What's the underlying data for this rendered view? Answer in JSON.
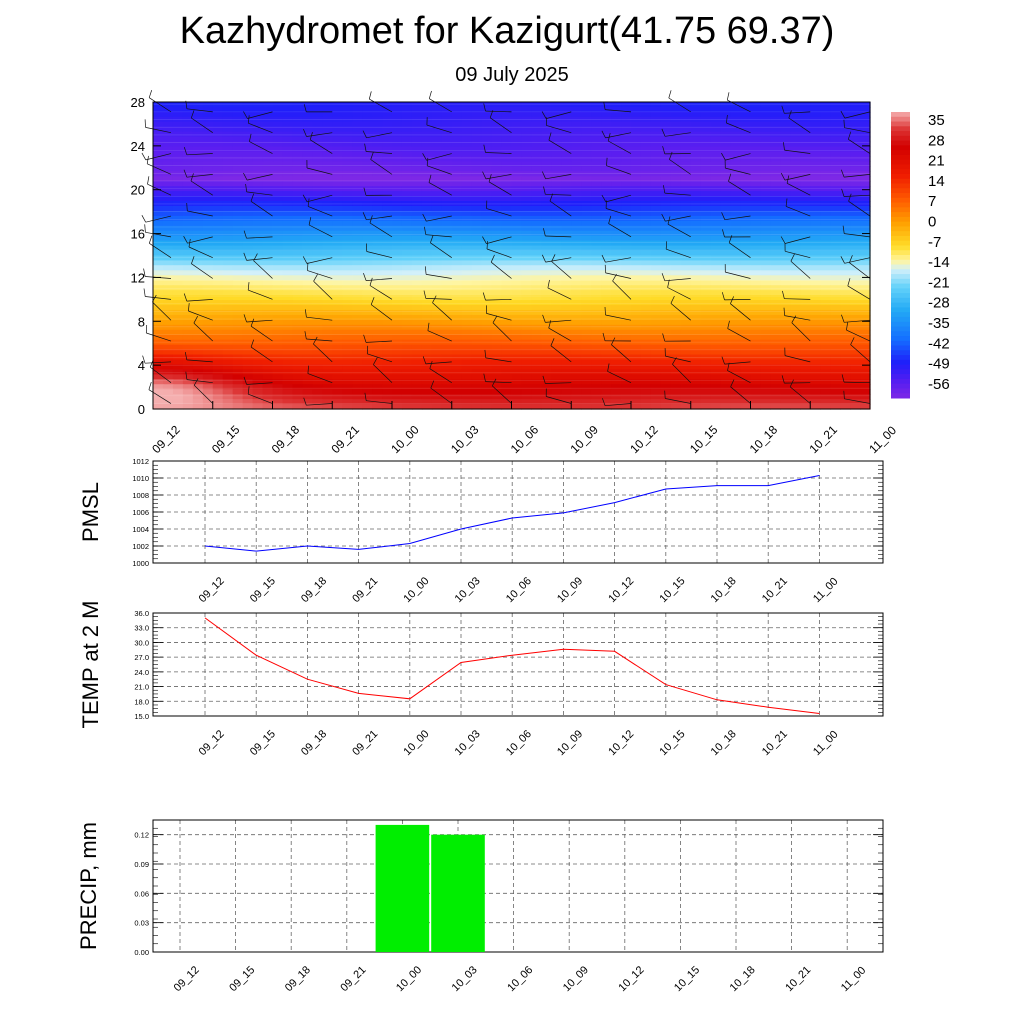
{
  "header": {
    "title": "Kazhydromet for Kazigurt(41.75 69.37)",
    "date": "09 July 2025"
  },
  "chart_data": [
    {
      "type": "heatmap",
      "time_labels": [
        "09_12",
        "09_15",
        "09_18",
        "09_21",
        "10_00",
        "10_03",
        "10_06",
        "10_09",
        "10_12",
        "10_15",
        "10_18",
        "10_21",
        "11_00"
      ],
      "yticks": [
        0,
        4,
        8,
        12,
        16,
        20,
        24,
        28
      ],
      "ylim": [
        0,
        28
      ],
      "colorbar_labels": [
        35,
        28,
        21,
        14,
        7,
        0,
        -7,
        -14,
        -21,
        -28,
        -35,
        -42,
        -49,
        -56
      ],
      "colorbar_range": [
        -60,
        38
      ],
      "profile_levels_km": [
        0,
        2,
        4,
        6,
        8,
        10,
        12,
        13,
        14,
        16,
        18,
        20,
        21,
        22,
        24,
        26,
        28
      ],
      "profile_temps_c": [
        33,
        25,
        17,
        8,
        0,
        -8,
        -14,
        -18,
        -24,
        -34,
        -44,
        -54,
        -60,
        -57,
        -54,
        -51,
        -48
      ],
      "hotspot": {
        "time": "09_12",
        "height_km": 1,
        "temp_c": 38
      },
      "wind_barbs": true
    },
    {
      "type": "line",
      "ylabel": "PMSL",
      "categories": [
        "09_12",
        "09_15",
        "09_18",
        "09_21",
        "10_00",
        "10_03",
        "10_06",
        "10_09",
        "10_12",
        "10_15",
        "10_18",
        "10_21",
        "11_00"
      ],
      "values": [
        1002.0,
        1001.4,
        1002.0,
        1001.6,
        1002.3,
        1004.0,
        1005.3,
        1005.9,
        1007.1,
        1008.7,
        1009.1,
        1009.1,
        1010.3
      ],
      "ylim": [
        1000,
        1012
      ],
      "yticks": [
        "1000",
        "1002",
        "1004",
        "1006",
        "1008",
        "1010",
        "1012"
      ],
      "color": "#0000ff"
    },
    {
      "type": "line",
      "ylabel": "TEMP at 2 M",
      "categories": [
        "09_12",
        "09_15",
        "09_18",
        "09_21",
        "10_00",
        "10_03",
        "10_06",
        "10_09",
        "10_12",
        "10_15",
        "10_18",
        "10_21",
        "11_00"
      ],
      "values": [
        35.0,
        27.4,
        22.5,
        19.6,
        18.5,
        25.9,
        27.4,
        28.6,
        28.2,
        21.4,
        18.3,
        16.8,
        15.5
      ],
      "ylim": [
        15,
        36
      ],
      "yticks": [
        "15.0",
        "18.0",
        "21.0",
        "24.0",
        "27.0",
        "30.0",
        "33.0",
        "36.0"
      ],
      "color": "#ff0000"
    },
    {
      "type": "bar",
      "ylabel": "PRECIP, mm",
      "categories": [
        "09_12",
        "09_15",
        "09_18",
        "09_21",
        "10_00",
        "10_03",
        "10_06",
        "10_09",
        "10_12",
        "10_15",
        "10_18",
        "10_21",
        "11_00"
      ],
      "values": [
        0,
        0,
        0,
        0,
        0.13,
        0.12,
        0,
        0,
        0,
        0,
        0,
        0,
        0
      ],
      "ylim": [
        0,
        0.135
      ],
      "yticks": [
        "0.00",
        "0.03",
        "0.06",
        "0.09",
        "0.12"
      ],
      "color": "#00ee00"
    }
  ]
}
